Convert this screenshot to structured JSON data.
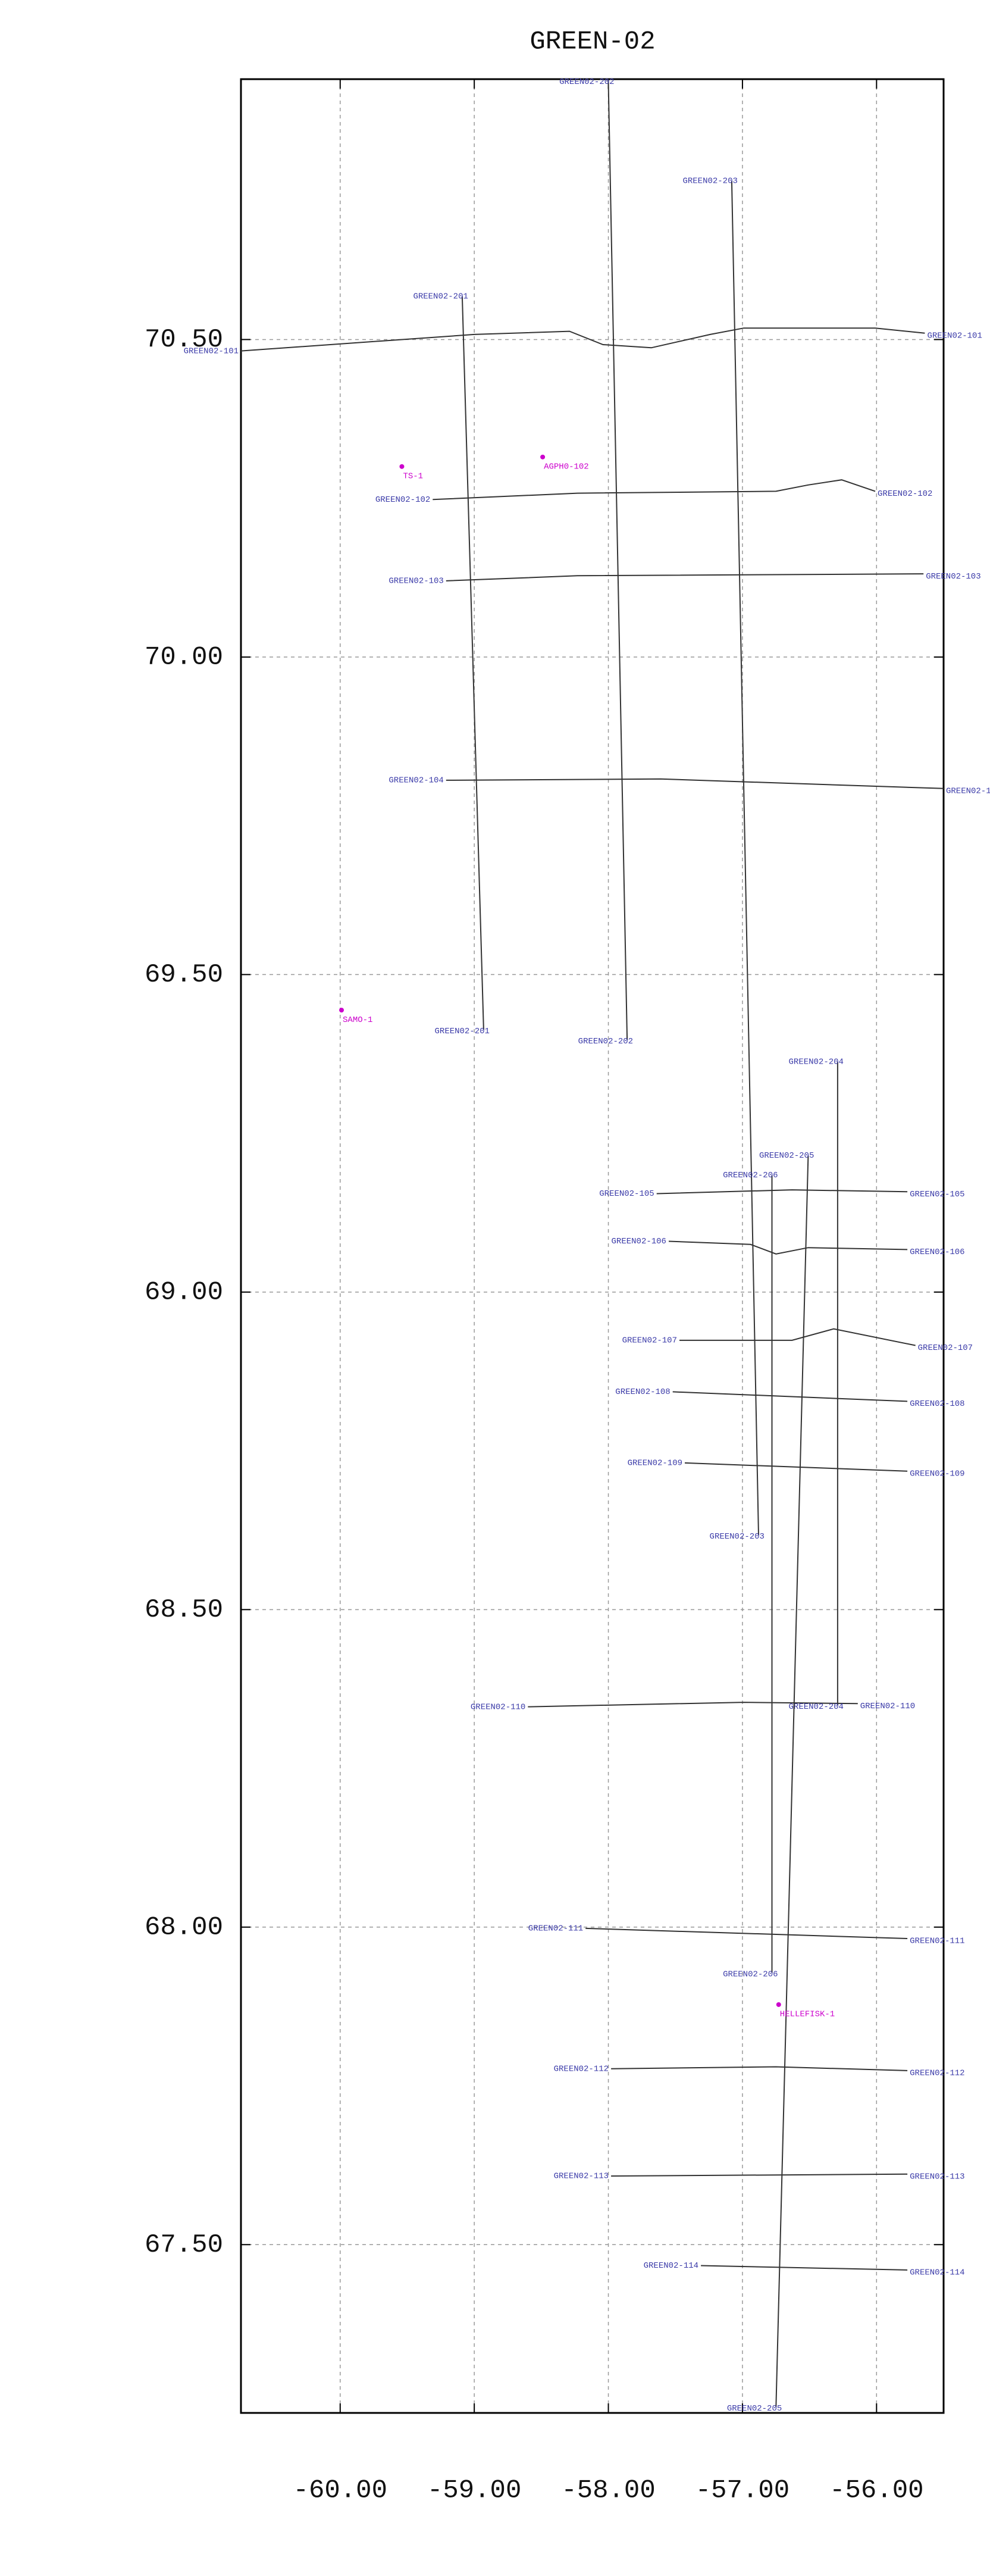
{
  "chart_data": {
    "type": "line",
    "title": "GREEN-02",
    "xlim": [
      -60.74,
      -55.5
    ],
    "ylim": [
      67.235,
      70.91
    ],
    "xticks": [
      {
        "value": -60,
        "label": "-60.00"
      },
      {
        "value": -59,
        "label": "-59.00"
      },
      {
        "value": -58,
        "label": "-58.00"
      },
      {
        "value": -57,
        "label": "-57.00"
      },
      {
        "value": -56,
        "label": "-56.00"
      }
    ],
    "yticks": [
      {
        "value": 67.5,
        "label": "67.50"
      },
      {
        "value": 68,
        "label": "68.00"
      },
      {
        "value": 68.5,
        "label": "68.50"
      },
      {
        "value": 69,
        "label": "69.00"
      },
      {
        "value": 69.5,
        "label": "69.50"
      },
      {
        "value": 70,
        "label": "70.00"
      },
      {
        "value": 70.5,
        "label": "70.50"
      }
    ],
    "grid": true,
    "label_color": "#3a3aa8",
    "series": [
      {
        "name": "GREEN02-101",
        "color": "#333333",
        "x": [
          -60.74,
          -59.0,
          -58.29,
          -58.04,
          -57.68,
          -57.24,
          -56.99,
          -56.01,
          -55.64
        ],
        "y": [
          70.482,
          70.508,
          70.513,
          70.492,
          70.487,
          70.508,
          70.518,
          70.518,
          70.51
        ]
      },
      {
        "name": "GREEN02-102",
        "color": "#333333",
        "x": [
          -59.31,
          -58.23,
          -56.75,
          -56.51,
          -56.26,
          -56.01
        ],
        "y": [
          70.248,
          70.258,
          70.261,
          70.271,
          70.279,
          70.261
        ]
      },
      {
        "name": "GREEN02-103",
        "color": "#333333",
        "x": [
          -59.21,
          -58.23,
          -55.65
        ],
        "y": [
          70.12,
          70.128,
          70.131
        ]
      },
      {
        "name": "GREEN02-104",
        "color": "#333333",
        "x": [
          -59.21,
          -57.61,
          -55.5
        ],
        "y": [
          69.806,
          69.808,
          69.793
        ]
      },
      {
        "name": "GREEN02-105",
        "color": "#333333",
        "x": [
          -57.64,
          -56.63,
          -55.77
        ],
        "y": [
          69.155,
          69.161,
          69.158
        ]
      },
      {
        "name": "GREEN02-106",
        "color": "#333333",
        "x": [
          -57.55,
          -56.94,
          -56.75,
          -56.51,
          -55.77
        ],
        "y": [
          69.08,
          69.075,
          69.06,
          69.07,
          69.067
        ]
      },
      {
        "name": "GREEN02-107",
        "color": "#333333",
        "x": [
          -57.47,
          -56.63,
          -56.32,
          -55.71
        ],
        "y": [
          68.924,
          68.924,
          68.942,
          68.916
        ]
      },
      {
        "name": "GREEN02-108",
        "color": "#333333",
        "x": [
          -57.52,
          -55.77
        ],
        "y": [
          68.843,
          68.828
        ]
      },
      {
        "name": "GREEN02-109",
        "color": "#333333",
        "x": [
          -57.43,
          -55.77
        ],
        "y": [
          68.731,
          68.718
        ]
      },
      {
        "name": "GREEN02-110",
        "color": "#333333",
        "x": [
          -58.6,
          -56.99,
          -56.14
        ],
        "y": [
          68.347,
          68.354,
          68.352
        ]
      },
      {
        "name": "GREEN02-111",
        "color": "#333333",
        "x": [
          -58.17,
          -55.77
        ],
        "y": [
          67.998,
          67.982
        ]
      },
      {
        "name": "GREEN02-112",
        "color": "#333333",
        "x": [
          -57.98,
          -56.75,
          -55.77
        ],
        "y": [
          67.777,
          67.78,
          67.774
        ]
      },
      {
        "name": "GREEN02-113",
        "color": "#333333",
        "x": [
          -57.98,
          -55.77
        ],
        "y": [
          67.608,
          67.611
        ]
      },
      {
        "name": "GREEN02-114",
        "color": "#333333",
        "x": [
          -57.31,
          -55.77
        ],
        "y": [
          67.467,
          67.46
        ]
      },
      {
        "name": "GREEN02-201",
        "color": "#333333",
        "x": [
          -59.09,
          -58.93
        ],
        "y": [
          70.568,
          69.413
        ]
      },
      {
        "name": "GREEN02-202",
        "color": "#333333",
        "x": [
          -58.0,
          -57.86
        ],
        "y": [
          70.906,
          69.397
        ]
      },
      {
        "name": "GREEN02-203",
        "color": "#333333",
        "x": [
          -57.08,
          -56.88
        ],
        "y": [
          70.75,
          68.617
        ]
      },
      {
        "name": "GREEN02-204",
        "color": "#333333",
        "x": [
          -56.29,
          -56.29
        ],
        "y": [
          69.363,
          68.349
        ]
      },
      {
        "name": "GREEN02-205",
        "color": "#333333",
        "x": [
          -56.51,
          -56.75
        ],
        "y": [
          69.215,
          67.244
        ]
      },
      {
        "name": "GREEN02-206",
        "color": "#333333",
        "x": [
          -56.78,
          -56.78
        ],
        "y": [
          69.184,
          67.928
        ]
      }
    ],
    "points": {
      "color": "#cc00cc",
      "items": [
        {
          "name": "TS-1",
          "x": -59.54,
          "y": 70.3
        },
        {
          "name": "AGPH0-102",
          "x": -58.49,
          "y": 70.315
        },
        {
          "name": "SAMO-1",
          "x": -59.99,
          "y": 69.444
        },
        {
          "name": "HELLEFISK-1",
          "x": -56.73,
          "y": 67.878
        }
      ]
    }
  }
}
